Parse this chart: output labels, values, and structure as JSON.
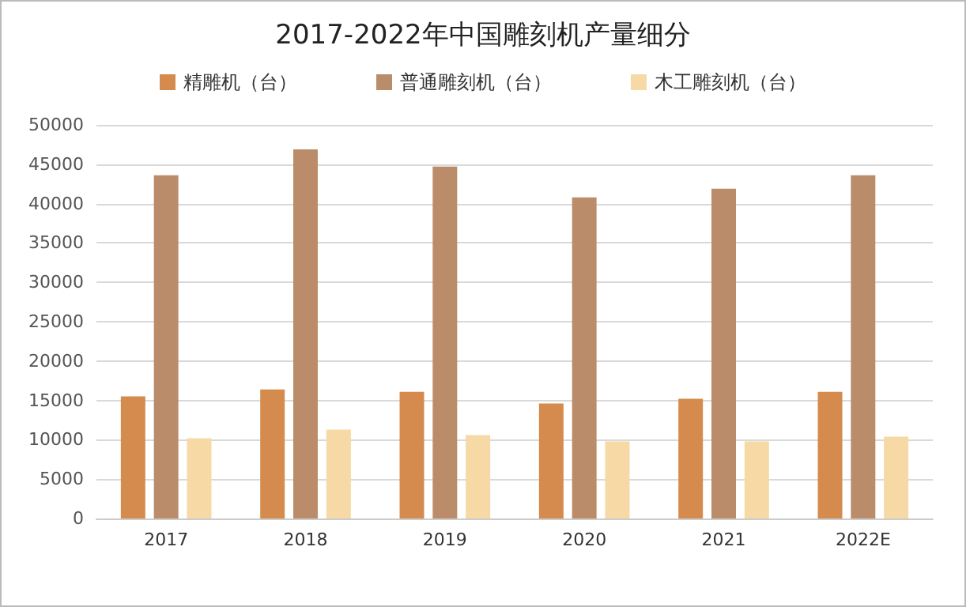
{
  "chart_data": {
    "type": "bar",
    "title": "2017-2022年中国雕刻机产量细分",
    "categories": [
      "2017",
      "2018",
      "2019",
      "2020",
      "2021",
      "2022E"
    ],
    "series": [
      {
        "name": "精雕机（台）",
        "color": "#d48b4d",
        "values": [
          15500,
          16400,
          16100,
          14600,
          15200,
          16100
        ]
      },
      {
        "name": "普通雕刻机（台）",
        "color": "#bb8c69",
        "values": [
          43600,
          46900,
          44700,
          40800,
          41900,
          43600
        ]
      },
      {
        "name": "木工雕刻机（台）",
        "color": "#f6d9a4",
        "values": [
          10200,
          11300,
          10600,
          9800,
          9800,
          10400
        ]
      }
    ],
    "ylim": [
      0,
      50000
    ],
    "yticks": [
      0,
      5000,
      10000,
      15000,
      20000,
      25000,
      30000,
      35000,
      40000,
      45000,
      50000
    ],
    "grid": "y",
    "legend": "top"
  }
}
